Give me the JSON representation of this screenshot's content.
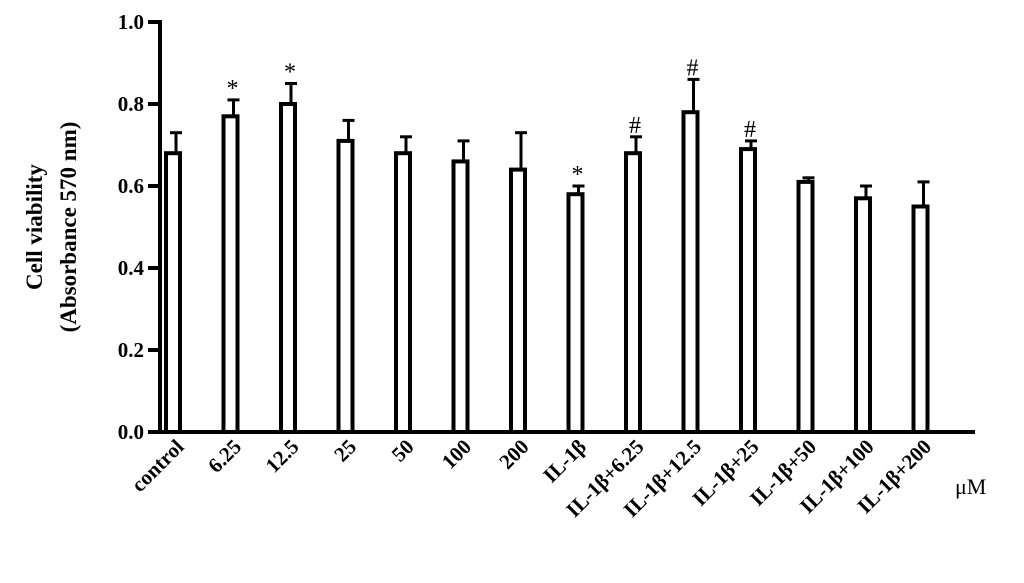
{
  "chart_data": {
    "type": "bar",
    "ylabel": [
      "Cell viability",
      "(Absorbance 570 nm)"
    ],
    "unit": "μM",
    "categories": [
      "control",
      "6.25",
      "12.5",
      "25",
      "50",
      "100",
      "200",
      "IL-1β",
      "IL-1β+6.25",
      "IL-1β+12.5",
      "IL-1β+25",
      "IL-1β+50",
      "IL-1β+100",
      "IL-1β+200"
    ],
    "values": [
      0.68,
      0.77,
      0.8,
      0.71,
      0.68,
      0.66,
      0.64,
      0.58,
      0.68,
      0.78,
      0.69,
      0.61,
      0.57,
      0.55
    ],
    "errors": [
      0.05,
      0.04,
      0.05,
      0.05,
      0.04,
      0.05,
      0.09,
      0.02,
      0.04,
      0.08,
      0.02,
      0.01,
      0.03,
      0.06
    ],
    "markers": [
      null,
      "*",
      "*",
      null,
      null,
      null,
      null,
      "*",
      "#",
      "#",
      "#",
      null,
      null,
      null
    ],
    "color": "#ffffff",
    "edgecolor": "#000000",
    "ylim": [
      0,
      1
    ],
    "yticks": [
      {
        "value": 0,
        "label": "0.0"
      },
      0.2,
      0.4,
      0.6,
      0.8,
      {
        "value": 1,
        "label": "1.0"
      }
    ],
    "grid": false
  }
}
